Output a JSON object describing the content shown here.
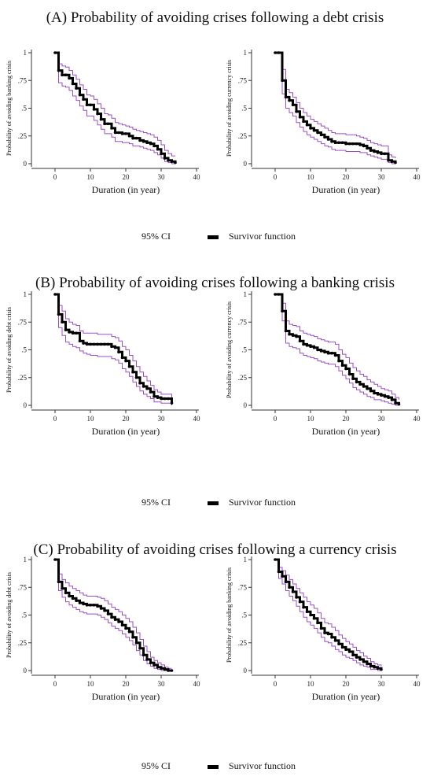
{
  "colors": {
    "survivor": "#000000",
    "ci": "#9b4fc7",
    "axis": "#333333"
  },
  "legend": {
    "ci_label": "95% CI",
    "survivor_label": "Survivor function"
  },
  "panels": [
    {
      "title": "(A) Probability of avoiding crises following a debt crisis",
      "charts": [
        {
          "type": "line",
          "ylabel": "Probability of avoiding banking crisis",
          "xlabel": "Duration (in year)",
          "xlim": [
            0,
            40
          ],
          "ylim": [
            0,
            1
          ],
          "xticks": [
            "0",
            "10",
            "20",
            "30",
            "40"
          ],
          "yticks": [
            "0",
            ".25",
            ".5",
            ".75",
            "1"
          ],
          "x": [
            0,
            1,
            2,
            3,
            4,
            5,
            6,
            7,
            8,
            9,
            10,
            11,
            12,
            13,
            14,
            15,
            16,
            17,
            18,
            19,
            20,
            21,
            22,
            23,
            24,
            25,
            26,
            27,
            28,
            29,
            30,
            31,
            32,
            33,
            34
          ],
          "survivor": [
            1,
            0.84,
            0.8,
            0.8,
            0.77,
            0.72,
            0.68,
            0.62,
            0.58,
            0.53,
            0.53,
            0.49,
            0.45,
            0.4,
            0.36,
            0.36,
            0.32,
            0.28,
            0.28,
            0.27,
            0.27,
            0.25,
            0.23,
            0.23,
            0.21,
            0.2,
            0.19,
            0.18,
            0.16,
            0.13,
            0.09,
            0.05,
            0.03,
            0.02,
            0.01
          ],
          "ci_upper": [
            1,
            0.9,
            0.88,
            0.87,
            0.84,
            0.8,
            0.76,
            0.71,
            0.67,
            0.62,
            0.61,
            0.58,
            0.54,
            0.5,
            0.45,
            0.44,
            0.41,
            0.37,
            0.36,
            0.35,
            0.34,
            0.33,
            0.31,
            0.3,
            0.29,
            0.28,
            0.27,
            0.26,
            0.24,
            0.21,
            0.17,
            0.12,
            0.09,
            0.07,
            0.07
          ],
          "ci_lower": [
            1,
            0.73,
            0.7,
            0.69,
            0.66,
            0.61,
            0.57,
            0.52,
            0.48,
            0.43,
            0.43,
            0.39,
            0.35,
            0.31,
            0.27,
            0.27,
            0.24,
            0.2,
            0.2,
            0.19,
            0.19,
            0.18,
            0.16,
            0.16,
            0.15,
            0.14,
            0.13,
            0.12,
            0.1,
            0.08,
            0.05,
            0.02,
            0.01,
            0,
            0
          ]
        },
        {
          "type": "line",
          "ylabel": "Probability of avoiding currency crisis",
          "xlabel": "Duration (in year)",
          "xlim": [
            0,
            40
          ],
          "ylim": [
            0,
            1
          ],
          "xticks": [
            "0",
            "10",
            "20",
            "30",
            "40"
          ],
          "yticks": [
            "0",
            ".25",
            ".5",
            ".75",
            "1"
          ],
          "x": [
            0,
            1,
            2,
            3,
            4,
            5,
            6,
            7,
            8,
            9,
            10,
            11,
            12,
            13,
            14,
            15,
            16,
            17,
            18,
            19,
            20,
            21,
            22,
            23,
            24,
            25,
            26,
            27,
            28,
            29,
            30,
            31,
            32,
            33,
            34
          ],
          "survivor": [
            1,
            1,
            0.75,
            0.6,
            0.57,
            0.53,
            0.47,
            0.42,
            0.38,
            0.35,
            0.32,
            0.3,
            0.28,
            0.26,
            0.24,
            0.22,
            0.2,
            0.19,
            0.19,
            0.19,
            0.18,
            0.18,
            0.18,
            0.18,
            0.17,
            0.16,
            0.14,
            0.12,
            0.11,
            0.1,
            0.09,
            0.09,
            0.03,
            0.02,
            0.01
          ],
          "ci_upper": [
            1,
            1,
            0.85,
            0.67,
            0.64,
            0.6,
            0.55,
            0.5,
            0.46,
            0.43,
            0.4,
            0.38,
            0.36,
            0.34,
            0.32,
            0.3,
            0.28,
            0.27,
            0.27,
            0.27,
            0.26,
            0.26,
            0.26,
            0.25,
            0.24,
            0.23,
            0.21,
            0.19,
            0.18,
            0.17,
            0.16,
            0.16,
            0.08,
            0.06,
            0.05
          ],
          "ci_lower": [
            1,
            1,
            0.63,
            0.5,
            0.46,
            0.43,
            0.37,
            0.33,
            0.29,
            0.26,
            0.24,
            0.22,
            0.2,
            0.18,
            0.16,
            0.15,
            0.13,
            0.12,
            0.12,
            0.12,
            0.11,
            0.11,
            0.11,
            0.11,
            0.1,
            0.1,
            0.08,
            0.07,
            0.06,
            0.05,
            0.04,
            0.04,
            0.01,
            0,
            0
          ]
        }
      ]
    },
    {
      "title": "(B) Probability of avoiding crises following a banking crisis",
      "charts": [
        {
          "type": "line",
          "ylabel": "Probability of avoiding debt crisis",
          "xlabel": "Duration (in year)",
          "xlim": [
            0,
            40
          ],
          "ylim": [
            0,
            1
          ],
          "xticks": [
            "0",
            "10",
            "20",
            "30",
            "40"
          ],
          "yticks": [
            "0",
            ".25",
            ".5",
            ".75",
            "1"
          ],
          "x": [
            0,
            1,
            2,
            3,
            4,
            5,
            6,
            7,
            8,
            9,
            10,
            11,
            12,
            13,
            14,
            15,
            16,
            17,
            18,
            19,
            20,
            21,
            22,
            23,
            24,
            25,
            26,
            27,
            28,
            29,
            30,
            31,
            32,
            33
          ],
          "survivor": [
            1,
            0.82,
            0.75,
            0.68,
            0.66,
            0.65,
            0.65,
            0.58,
            0.56,
            0.55,
            0.55,
            0.55,
            0.55,
            0.55,
            0.55,
            0.55,
            0.53,
            0.52,
            0.48,
            0.43,
            0.4,
            0.35,
            0.3,
            0.25,
            0.2,
            0.17,
            0.15,
            0.12,
            0.08,
            0.07,
            0.06,
            0.06,
            0.06,
            0.02
          ],
          "ci_upper": [
            1,
            0.9,
            0.85,
            0.78,
            0.75,
            0.73,
            0.72,
            0.67,
            0.65,
            0.65,
            0.65,
            0.65,
            0.64,
            0.64,
            0.64,
            0.64,
            0.62,
            0.61,
            0.58,
            0.53,
            0.5,
            0.45,
            0.4,
            0.35,
            0.3,
            0.26,
            0.22,
            0.18,
            0.14,
            0.12,
            0.1,
            0.1,
            0.1,
            0.06
          ],
          "ci_lower": [
            1,
            0.7,
            0.63,
            0.57,
            0.55,
            0.53,
            0.52,
            0.49,
            0.47,
            0.46,
            0.45,
            0.45,
            0.44,
            0.44,
            0.44,
            0.44,
            0.42,
            0.41,
            0.38,
            0.33,
            0.3,
            0.26,
            0.21,
            0.17,
            0.13,
            0.1,
            0.08,
            0.06,
            0.03,
            0.03,
            0.02,
            0.02,
            0.02,
            0
          ]
        },
        {
          "type": "line",
          "ylabel": "Probability of avoiding currency crisis",
          "xlabel": "Duration (in year)",
          "xlim": [
            0,
            40
          ],
          "ylim": [
            0,
            1
          ],
          "xticks": [
            "0",
            "10",
            "20",
            "30",
            "40"
          ],
          "yticks": [
            "0",
            ".25",
            ".5",
            ".75",
            "1"
          ],
          "x": [
            0,
            1,
            2,
            3,
            4,
            5,
            6,
            7,
            8,
            9,
            10,
            11,
            12,
            13,
            14,
            15,
            16,
            17,
            18,
            19,
            20,
            21,
            22,
            23,
            24,
            25,
            26,
            27,
            28,
            29,
            30,
            31,
            32,
            33,
            34,
            35
          ],
          "survivor": [
            1,
            1,
            0.85,
            0.67,
            0.64,
            0.63,
            0.62,
            0.58,
            0.55,
            0.54,
            0.53,
            0.52,
            0.5,
            0.49,
            0.48,
            0.47,
            0.47,
            0.45,
            0.4,
            0.36,
            0.33,
            0.28,
            0.24,
            0.21,
            0.19,
            0.17,
            0.15,
            0.13,
            0.11,
            0.1,
            0.09,
            0.08,
            0.07,
            0.05,
            0.02,
            0.01
          ],
          "ci_upper": [
            1,
            1,
            0.92,
            0.76,
            0.73,
            0.72,
            0.71,
            0.67,
            0.65,
            0.64,
            0.63,
            0.62,
            0.6,
            0.59,
            0.58,
            0.57,
            0.57,
            0.55,
            0.5,
            0.46,
            0.43,
            0.38,
            0.34,
            0.31,
            0.28,
            0.26,
            0.23,
            0.21,
            0.19,
            0.17,
            0.15,
            0.14,
            0.13,
            0.1,
            0.07,
            0.05
          ],
          "ci_lower": [
            1,
            1,
            0.76,
            0.56,
            0.53,
            0.52,
            0.51,
            0.47,
            0.45,
            0.44,
            0.43,
            0.42,
            0.4,
            0.39,
            0.38,
            0.37,
            0.37,
            0.35,
            0.31,
            0.27,
            0.24,
            0.2,
            0.16,
            0.14,
            0.12,
            0.1,
            0.08,
            0.07,
            0.05,
            0.05,
            0.04,
            0.03,
            0.02,
            0.01,
            0,
            0
          ]
        }
      ]
    },
    {
      "title": "(C) Probability of avoiding crises following a currency crisis",
      "charts": [
        {
          "type": "line",
          "ylabel": "Probability of avoiding debt crisis",
          "xlabel": "Duration (in year)",
          "xlim": [
            0,
            40
          ],
          "ylim": [
            0,
            1
          ],
          "xticks": [
            "0",
            "10",
            "20",
            "30",
            "40"
          ],
          "yticks": [
            "0",
            ".25",
            ".5",
            ".75",
            "1"
          ],
          "x": [
            0,
            1,
            2,
            3,
            4,
            5,
            6,
            7,
            8,
            9,
            10,
            11,
            12,
            13,
            14,
            15,
            16,
            17,
            18,
            19,
            20,
            21,
            22,
            23,
            24,
            25,
            26,
            27,
            28,
            29,
            30,
            31,
            32,
            33
          ],
          "survivor": [
            1,
            0.8,
            0.74,
            0.7,
            0.67,
            0.65,
            0.63,
            0.61,
            0.6,
            0.59,
            0.59,
            0.59,
            0.58,
            0.56,
            0.54,
            0.51,
            0.48,
            0.46,
            0.44,
            0.41,
            0.38,
            0.35,
            0.3,
            0.25,
            0.2,
            0.14,
            0.1,
            0.07,
            0.05,
            0.03,
            0.02,
            0.01,
            0,
            0
          ],
          "ci_upper": [
            1,
            0.87,
            0.82,
            0.79,
            0.76,
            0.74,
            0.72,
            0.7,
            0.68,
            0.67,
            0.67,
            0.67,
            0.66,
            0.65,
            0.63,
            0.6,
            0.57,
            0.55,
            0.53,
            0.5,
            0.47,
            0.44,
            0.39,
            0.34,
            0.28,
            0.22,
            0.17,
            0.12,
            0.09,
            0.07,
            0.05,
            0.03,
            0.02,
            0.02
          ],
          "ci_lower": [
            1,
            0.72,
            0.66,
            0.62,
            0.59,
            0.57,
            0.55,
            0.53,
            0.52,
            0.51,
            0.51,
            0.51,
            0.5,
            0.48,
            0.46,
            0.43,
            0.4,
            0.38,
            0.36,
            0.33,
            0.3,
            0.27,
            0.23,
            0.18,
            0.14,
            0.09,
            0.06,
            0.04,
            0.02,
            0.01,
            0,
            0,
            0,
            0
          ]
        },
        {
          "type": "line",
          "ylabel": "Probability of avoiding banking crisis",
          "xlabel": "Duration (in year)",
          "xlim": [
            0,
            40
          ],
          "ylim": [
            0,
            1
          ],
          "xticks": [
            "0",
            "10",
            "20",
            "30",
            "40"
          ],
          "yticks": [
            "0",
            ".25",
            ".5",
            ".75",
            "1"
          ],
          "x": [
            0,
            1,
            2,
            3,
            4,
            5,
            6,
            7,
            8,
            9,
            10,
            11,
            12,
            13,
            14,
            15,
            16,
            17,
            18,
            19,
            20,
            21,
            22,
            23,
            24,
            25,
            26,
            27,
            28,
            29,
            30
          ],
          "survivor": [
            1,
            0.89,
            0.85,
            0.8,
            0.75,
            0.71,
            0.66,
            0.62,
            0.57,
            0.53,
            0.5,
            0.47,
            0.43,
            0.38,
            0.34,
            0.33,
            0.3,
            0.27,
            0.24,
            0.21,
            0.19,
            0.17,
            0.14,
            0.12,
            0.1,
            0.08,
            0.06,
            0.04,
            0.03,
            0.02,
            0.01
          ],
          "ci_upper": [
            1,
            0.93,
            0.9,
            0.86,
            0.82,
            0.78,
            0.74,
            0.7,
            0.66,
            0.62,
            0.59,
            0.56,
            0.52,
            0.47,
            0.43,
            0.42,
            0.39,
            0.36,
            0.32,
            0.29,
            0.26,
            0.24,
            0.21,
            0.18,
            0.16,
            0.13,
            0.11,
            0.08,
            0.06,
            0.05,
            0.04
          ],
          "ci_lower": [
            1,
            0.83,
            0.78,
            0.72,
            0.67,
            0.63,
            0.58,
            0.53,
            0.48,
            0.44,
            0.41,
            0.38,
            0.34,
            0.3,
            0.26,
            0.25,
            0.22,
            0.19,
            0.17,
            0.14,
            0.12,
            0.11,
            0.09,
            0.07,
            0.05,
            0.04,
            0.03,
            0.01,
            0.01,
            0,
            0
          ]
        }
      ]
    }
  ]
}
